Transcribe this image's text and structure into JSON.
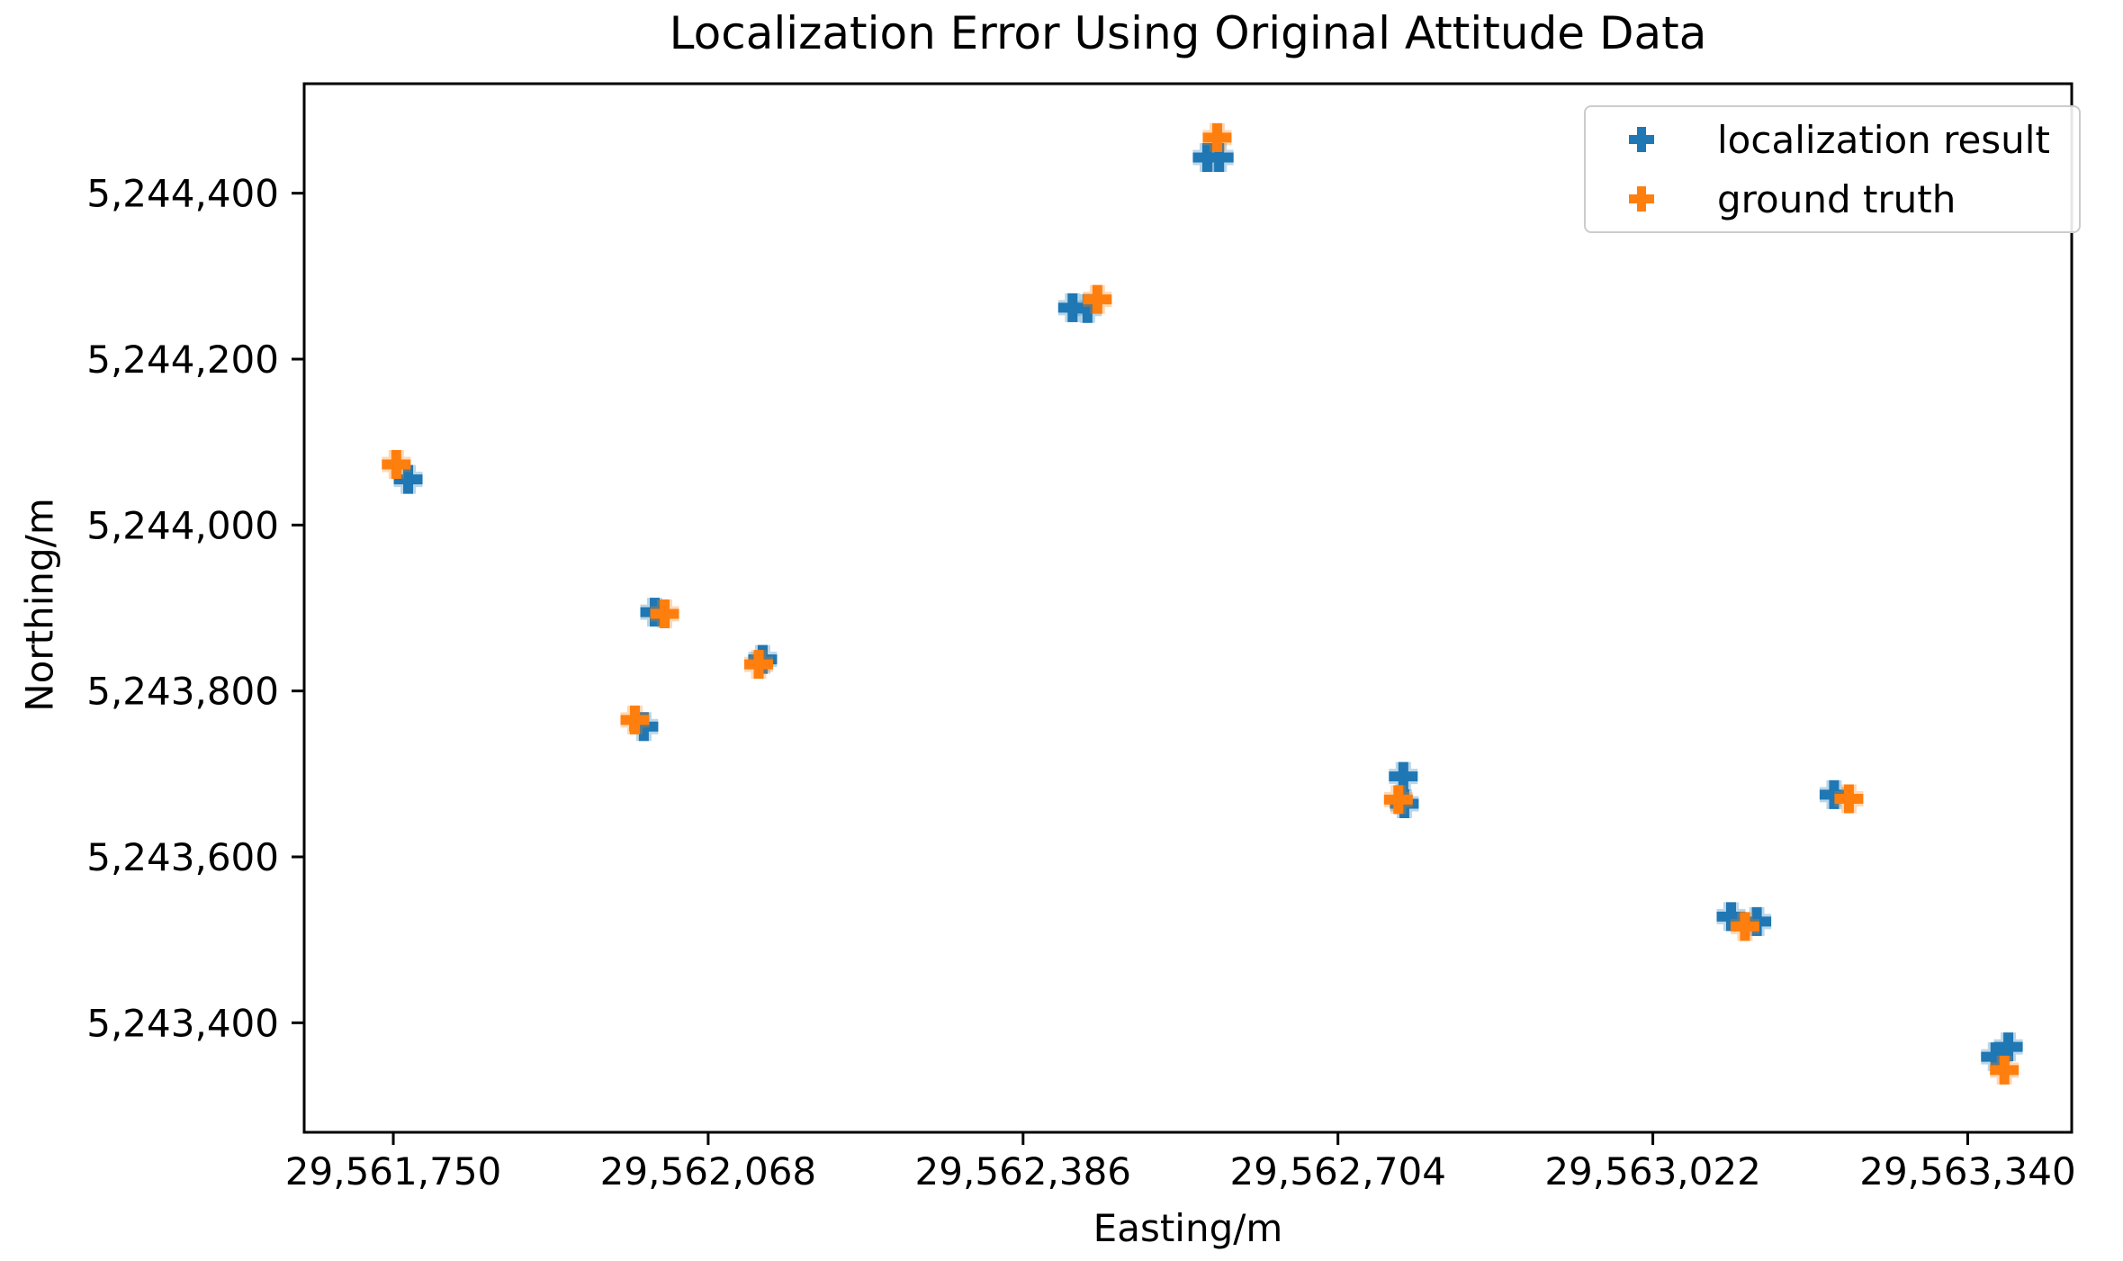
{
  "chart_data": {
    "type": "scatter",
    "title": "Localization Error Using Original Attitude Data",
    "xlabel": "Easting/m",
    "ylabel": "Northing/m",
    "xlim": [
      29561660,
      29563445
    ],
    "ylim": [
      5243268,
      5244532
    ],
    "grid": false,
    "legend_position": "upper right",
    "frame_color": "#000000",
    "x_ticks": [
      {
        "value": 29561750,
        "label": "29,561,750"
      },
      {
        "value": 29562068,
        "label": "29,562,068"
      },
      {
        "value": 29562386,
        "label": "29,562,386"
      },
      {
        "value": 29562704,
        "label": "29,562,704"
      },
      {
        "value": 29563022,
        "label": "29,563,022"
      },
      {
        "value": 29563340,
        "label": "29,563,340"
      }
    ],
    "y_ticks": [
      {
        "value": 5243400,
        "label": "5,243,400"
      },
      {
        "value": 5243600,
        "label": "5,243,600"
      },
      {
        "value": 5243800,
        "label": "5,243,800"
      },
      {
        "value": 5244000,
        "label": "5,244,000"
      },
      {
        "value": 5244200,
        "label": "5,244,200"
      },
      {
        "value": 5244400,
        "label": "5,244,400"
      }
    ],
    "series": [
      {
        "name": "localization result",
        "color": "#1f77b4",
        "marker": "plus",
        "points": [
          [
            29561765,
            5244055
          ],
          [
            29562014,
            5243895
          ],
          [
            29562123,
            5243838
          ],
          [
            29562003,
            5243757
          ],
          [
            29562436,
            5244262
          ],
          [
            29562451,
            5244261
          ],
          [
            29562572,
            5244443
          ],
          [
            29562584,
            5244443
          ],
          [
            29562770,
            5243697
          ],
          [
            29562771,
            5243664
          ],
          [
            29563205,
            5243675
          ],
          [
            29563101,
            5243528
          ],
          [
            29563127,
            5243522
          ],
          [
            29563368,
            5243359
          ],
          [
            29563381,
            5243371
          ]
        ]
      },
      {
        "name": "ground truth",
        "color": "#ff7f0e",
        "marker": "plus",
        "points": [
          [
            29561753,
            5244073
          ],
          [
            29562024,
            5243893
          ],
          [
            29562119,
            5243832
          ],
          [
            29561994,
            5243765
          ],
          [
            29562461,
            5244272
          ],
          [
            29562582,
            5244467
          ],
          [
            29562765,
            5243669
          ],
          [
            29563220,
            5243670
          ],
          [
            29563115,
            5243516
          ],
          [
            29563377,
            5243343
          ]
        ]
      }
    ]
  }
}
